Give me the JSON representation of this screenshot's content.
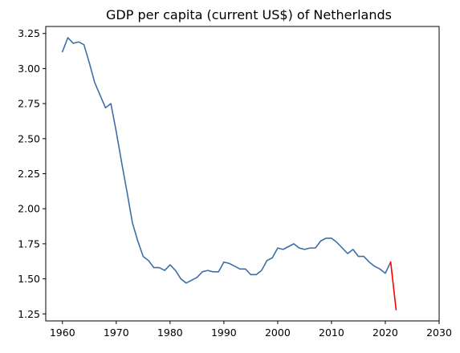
{
  "chart_data": {
    "type": "line",
    "title": "GDP per capita (current US$) of Netherlands",
    "xlabel": "",
    "ylabel": "",
    "xlim": [
      1956.9,
      2030
    ],
    "ylim": [
      1.2,
      3.3
    ],
    "x_ticks": [
      1960,
      1970,
      1980,
      1990,
      2000,
      2010,
      2020,
      2030
    ],
    "y_ticks": [
      1.25,
      1.5,
      1.75,
      2.0,
      2.25,
      2.5,
      2.75,
      3.0,
      3.25
    ],
    "x_tick_labels": [
      "1960",
      "1970",
      "1980",
      "1990",
      "2000",
      "2010",
      "2020",
      "2030"
    ],
    "y_tick_labels": [
      "1.25",
      "1.50",
      "1.75",
      "2.00",
      "2.25",
      "2.50",
      "2.75",
      "3.00",
      "3.25"
    ],
    "grid": false,
    "colors": {
      "series_main": "#3e6ea8",
      "series_tail": "#ff0000",
      "axes": "#000000"
    },
    "series": [
      {
        "color": "#3e6ea8",
        "x": [
          1960,
          1961,
          1962,
          1963,
          1964,
          1965,
          1966,
          1967,
          1968,
          1969,
          1970,
          1971,
          1972,
          1973,
          1974,
          1975,
          1976,
          1977,
          1978,
          1979,
          1980,
          1981,
          1982,
          1983,
          1984,
          1985,
          1986,
          1987,
          1988,
          1989,
          1990,
          1991,
          1992,
          1993,
          1994,
          1995,
          1996,
          1997,
          1998,
          1999,
          2000,
          2001,
          2002,
          2003,
          2004,
          2005,
          2006,
          2007,
          2008,
          2009,
          2010,
          2011,
          2012,
          2013,
          2014,
          2015,
          2016,
          2017,
          2018,
          2019,
          2020,
          2021
        ],
        "y": [
          3.12,
          3.22,
          3.18,
          3.19,
          3.17,
          3.04,
          2.9,
          2.81,
          2.72,
          2.75,
          2.55,
          2.33,
          2.12,
          1.9,
          1.77,
          1.66,
          1.63,
          1.58,
          1.58,
          1.56,
          1.6,
          1.56,
          1.5,
          1.47,
          1.49,
          1.51,
          1.55,
          1.56,
          1.55,
          1.55,
          1.62,
          1.61,
          1.59,
          1.57,
          1.57,
          1.53,
          1.53,
          1.56,
          1.63,
          1.65,
          1.72,
          1.71,
          1.73,
          1.75,
          1.72,
          1.71,
          1.72,
          1.72,
          1.77,
          1.79,
          1.79,
          1.76,
          1.72,
          1.68,
          1.71,
          1.66,
          1.66,
          1.62,
          1.59,
          1.57,
          1.54,
          1.62
        ]
      },
      {
        "color": "#ff0000",
        "x": [
          2021,
          2022
        ],
        "y": [
          1.62,
          1.28
        ]
      }
    ]
  }
}
